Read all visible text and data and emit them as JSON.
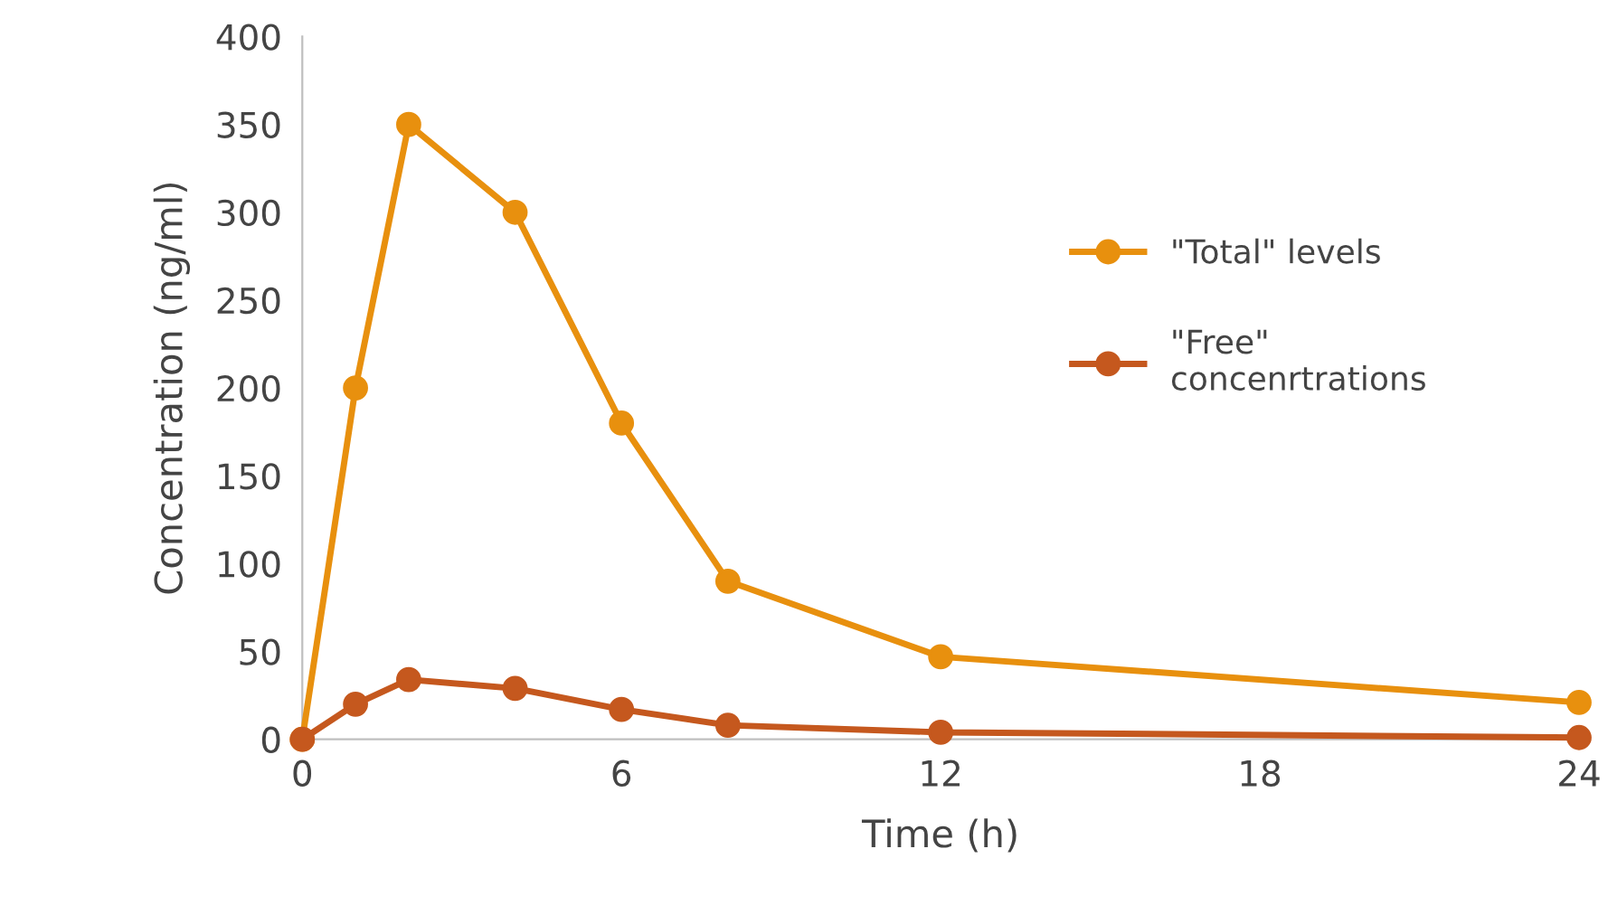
{
  "chart_data": {
    "type": "line",
    "xlabel": "Time (h)",
    "ylabel": "Concentration (ng/ml)",
    "xlim": [
      0,
      24
    ],
    "xticks": [
      0,
      6,
      12,
      18,
      24
    ],
    "ylim": [
      0,
      400
    ],
    "yticks": [
      0,
      50,
      100,
      150,
      200,
      250,
      300,
      350,
      400
    ],
    "x": [
      0,
      1,
      2,
      4,
      6,
      8,
      12,
      24
    ],
    "series": [
      {
        "name": "\"Total\" levels",
        "color": "#e8900e",
        "values": [
          0,
          200,
          350,
          300,
          180,
          90,
          47,
          21
        ]
      },
      {
        "name": "\"Free\"\nconcenrtrations",
        "color": "#c5581e",
        "values": [
          0,
          20,
          34,
          29,
          17,
          8,
          4,
          1
        ]
      }
    ],
    "marker": "circle",
    "line_style": "solid",
    "grid": false,
    "legend": "right"
  }
}
